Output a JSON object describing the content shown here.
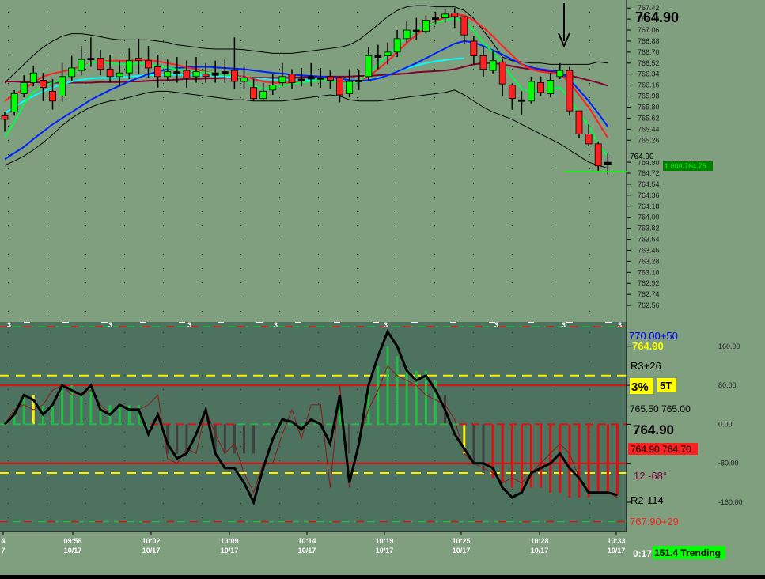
{
  "colors": {
    "price_bg": "#7f9f7f",
    "osc_bg": "#4d7260",
    "frame": "#000000",
    "up_candle": "#00ff00",
    "down_candle": "#ff2020",
    "doji": "#000000",
    "ma_fast": "#00ff44",
    "ma_red": "#ff2020",
    "ma_blue": "#0022ff",
    "ma_cyan": "#00ffff",
    "ma_maroon": "#800030",
    "band": "#000000",
    "hist_up": "#22bb44",
    "hist_down": "#dd1111",
    "hist_neutral": "#404040",
    "hist_yellow": "#ffee00"
  },
  "header": {
    "last_price": "764.90"
  },
  "price_marker": {
    "label": "1.000 764.75",
    "value": 764.75
  },
  "price_axis": {
    "ticks": [
      "767.42",
      "767.24",
      "767.06",
      "766.88",
      "766.70",
      "766.52",
      "766.34",
      "766.16",
      "765.98",
      "765.80",
      "765.62",
      "765.44",
      "765.26",
      "764.90",
      "764.72",
      "764.54",
      "764.36",
      "764.18",
      "764.00",
      "763.82",
      "763.64",
      "763.46",
      "763.28",
      "763.10",
      "762.92",
      "762.74",
      "762.56"
    ],
    "tick_values": [
      767.42,
      767.24,
      767.06,
      766.88,
      766.7,
      766.52,
      766.34,
      766.16,
      765.98,
      765.8,
      765.62,
      765.44,
      765.26,
      764.9,
      764.72,
      764.54,
      764.36,
      764.18,
      764.0,
      763.82,
      763.64,
      763.46,
      763.28,
      763.1,
      762.92,
      762.74,
      762.56
    ],
    "current_label": "764.90",
    "current_value": 764.9
  },
  "osc_axis": {
    "ticks": [
      "160.00",
      "80.00",
      "0.00",
      "-80.00",
      "-160.00"
    ],
    "tick_values": [
      160,
      80,
      0,
      -80,
      -160
    ],
    "top_marker": "3"
  },
  "osc_panel": {
    "label_770": "770.00+50",
    "label_yellow_price": "764.90",
    "label_r3": "R3+26",
    "label_pct": "3%",
    "label_5t": "5T",
    "label_765": "765.50 765.00",
    "label_price_big": "764.90",
    "label_red_box": "764.90 764.70",
    "label_angle": "12  -68°",
    "label_r2": "R2-114",
    "label_767": "767.90+29"
  },
  "time_axis": {
    "times": [
      "4",
      "09:58",
      "10:02",
      "10:09",
      "10:14",
      "10:19",
      "10:25",
      "10:28",
      "10:33"
    ],
    "dates": [
      "7",
      "10/17",
      "10/17",
      "10/17",
      "10/17",
      "10/17",
      "10/17",
      "10/17",
      "10/17"
    ]
  },
  "status_bar": {
    "timer": "0:17",
    "trend": "151.4 Trending"
  },
  "chart_data": {
    "type": "candlestick",
    "price_range": [
      762.38,
      767.5
    ],
    "candles": [
      [
        765.66,
        765.6,
        765.72,
        765.4
      ],
      [
        765.72,
        766.02,
        766.08,
        765.66
      ],
      [
        766.02,
        766.2,
        766.32,
        765.96
      ],
      [
        766.2,
        766.36,
        766.48,
        766.14
      ],
      [
        766.24,
        766.12,
        766.36,
        765.9
      ],
      [
        766.06,
        765.9,
        766.26,
        765.76
      ],
      [
        765.98,
        766.3,
        766.52,
        765.88
      ],
      [
        766.3,
        766.44,
        766.64,
        766.22
      ],
      [
        766.4,
        766.58,
        766.8,
        766.32
      ],
      [
        766.58,
        766.6,
        766.94,
        766.46
      ],
      [
        766.6,
        766.42,
        766.74,
        766.32
      ],
      [
        766.42,
        766.3,
        766.66,
        766.2
      ],
      [
        766.3,
        766.36,
        766.56,
        766.14
      ],
      [
        766.36,
        766.56,
        766.76,
        766.26
      ],
      [
        766.6,
        766.56,
        766.92,
        766.34
      ],
      [
        766.56,
        766.44,
        766.8,
        766.28
      ],
      [
        766.46,
        766.3,
        766.66,
        766.12
      ],
      [
        766.3,
        766.38,
        766.58,
        766.22
      ],
      [
        766.36,
        766.38,
        766.62,
        766.2
      ],
      [
        766.4,
        766.28,
        766.56,
        766.12
      ],
      [
        766.3,
        766.38,
        766.62,
        766.2
      ],
      [
        766.34,
        766.3,
        766.52,
        766.2
      ],
      [
        766.32,
        766.36,
        766.56,
        766.2
      ],
      [
        766.34,
        766.38,
        766.58,
        766.2
      ],
      [
        766.4,
        766.22,
        766.94,
        766.1
      ],
      [
        766.22,
        766.28,
        766.46,
        766.1
      ],
      [
        766.12,
        765.94,
        766.26,
        765.9
      ],
      [
        765.94,
        766.06,
        766.2,
        765.9
      ],
      [
        766.08,
        766.16,
        766.34,
        766.0
      ],
      [
        766.2,
        766.3,
        766.52,
        766.14
      ],
      [
        766.34,
        766.2,
        766.42,
        766.1
      ],
      [
        766.24,
        766.26,
        766.44,
        766.14
      ],
      [
        766.26,
        766.3,
        766.52,
        766.14
      ],
      [
        766.28,
        766.26,
        766.44,
        766.12
      ],
      [
        766.3,
        766.24,
        766.4,
        766.1
      ],
      [
        766.28,
        766.0,
        766.3,
        765.88
      ],
      [
        766.02,
        766.22,
        766.42,
        765.96
      ],
      [
        766.22,
        766.24,
        766.4,
        766.08
      ],
      [
        766.3,
        766.64,
        766.78,
        766.22
      ],
      [
        766.62,
        766.64,
        766.82,
        766.42
      ],
      [
        766.64,
        766.7,
        766.86,
        766.5
      ],
      [
        766.7,
        766.92,
        767.06,
        766.62
      ],
      [
        766.92,
        767.06,
        767.2,
        766.86
      ],
      [
        767.06,
        767.04,
        767.26,
        766.9
      ],
      [
        767.04,
        767.22,
        767.3,
        767.0
      ],
      [
        767.24,
        767.26,
        767.36,
        767.16
      ],
      [
        767.26,
        767.32,
        767.4,
        767.18
      ],
      [
        767.34,
        767.28,
        767.42,
        767.1
      ],
      [
        767.28,
        766.98,
        767.2,
        766.84
      ],
      [
        766.88,
        766.64,
        766.96,
        766.5
      ],
      [
        766.64,
        766.42,
        766.8,
        766.3
      ],
      [
        766.4,
        766.56,
        766.72,
        766.34
      ],
      [
        766.54,
        766.18,
        766.6,
        765.98
      ],
      [
        766.16,
        765.94,
        766.18,
        765.76
      ],
      [
        765.92,
        765.9,
        766.06,
        765.68
      ],
      [
        765.9,
        766.22,
        766.3,
        765.86
      ],
      [
        766.2,
        766.04,
        766.3,
        765.98
      ],
      [
        766.02,
        766.24,
        766.36,
        765.96
      ],
      [
        766.3,
        766.4,
        766.52,
        766.26
      ],
      [
        766.4,
        765.74,
        766.46,
        765.66
      ],
      [
        765.74,
        765.36,
        765.74,
        765.3
      ],
      [
        765.36,
        765.2,
        765.52,
        765.16
      ],
      [
        765.2,
        764.84,
        765.24,
        764.76
      ],
      [
        764.86,
        764.9,
        765.04,
        764.7
      ]
    ],
    "ma_fast": [
      765.3,
      765.55,
      765.85,
      766.05,
      766.15,
      766.2,
      766.25,
      766.35,
      766.45,
      766.52,
      766.55,
      766.53,
      766.5,
      766.5,
      766.52,
      766.5,
      766.47,
      766.44,
      766.42,
      766.4,
      766.38,
      766.37,
      766.35,
      766.33,
      766.32,
      766.25,
      766.15,
      766.1,
      766.12,
      766.15,
      766.18,
      766.2,
      766.22,
      766.24,
      766.24,
      766.2,
      766.18,
      766.22,
      766.35,
      766.5,
      766.65,
      766.8,
      766.95,
      767.05,
      767.12,
      767.18,
      767.22,
      767.25,
      767.2,
      767.05,
      766.85,
      766.7,
      766.5,
      766.3,
      766.1,
      766.05,
      766.08,
      766.1,
      766.12,
      765.95,
      765.7,
      765.5,
      765.2,
      765.0
    ],
    "ma_red": [
      765.9,
      766.0,
      766.1,
      766.2,
      766.3,
      766.35,
      766.38,
      766.42,
      766.47,
      766.52,
      766.55,
      766.56,
      766.56,
      766.56,
      766.57,
      766.57,
      766.55,
      766.52,
      766.49,
      766.45,
      766.42,
      766.38,
      766.35,
      766.33,
      766.32,
      766.3,
      766.26,
      766.22,
      766.2,
      766.2,
      766.2,
      766.2,
      766.22,
      766.24,
      766.24,
      766.22,
      766.21,
      766.22,
      766.3,
      766.42,
      766.55,
      766.7,
      766.85,
      766.98,
      767.1,
      767.2,
      767.27,
      767.32,
      767.3,
      767.22,
      767.1,
      766.96,
      766.8,
      766.65,
      766.5,
      766.42,
      766.38,
      766.36,
      766.35,
      766.2,
      766.0,
      765.8,
      765.55,
      765.3
    ],
    "ma_blue": [
      764.95,
      765.05,
      765.15,
      765.28,
      765.4,
      765.52,
      765.62,
      765.72,
      765.82,
      765.92,
      766.0,
      766.08,
      766.15,
      766.22,
      766.28,
      766.34,
      766.38,
      766.42,
      766.44,
      766.45,
      766.46,
      766.46,
      766.45,
      766.44,
      766.43,
      766.42,
      766.4,
      766.38,
      766.36,
      766.35,
      766.33,
      766.32,
      766.31,
      766.3,
      766.29,
      766.27,
      766.24,
      766.23,
      766.24,
      766.27,
      766.32,
      766.38,
      766.45,
      766.52,
      766.6,
      766.68,
      766.76,
      766.84,
      766.88,
      766.86,
      766.8,
      766.73,
      766.66,
      766.58,
      766.5,
      766.45,
      766.42,
      766.4,
      766.38,
      766.25,
      766.08,
      765.9,
      765.7,
      765.48
    ],
    "ma_cyan": [
      765.7,
      765.8,
      765.9,
      765.98,
      766.06,
      766.12,
      766.18,
      766.22,
      766.25,
      766.27,
      766.28,
      766.28,
      766.29,
      766.3,
      766.31,
      766.32,
      766.33,
      766.33,
      766.33,
      766.33,
      766.32,
      766.32,
      766.31,
      766.3,
      766.29,
      766.28,
      766.27,
      766.26,
      766.25,
      766.25,
      766.25,
      766.24,
      766.24,
      766.24,
      766.24,
      766.23,
      766.22,
      766.22,
      766.24,
      766.28,
      766.32,
      766.38,
      766.44,
      766.48,
      766.52,
      766.55,
      766.57,
      766.59,
      766.6
    ],
    "ma_maroon": [
      766.22,
      766.22,
      766.21,
      766.21,
      766.2,
      766.2,
      766.2,
      766.2,
      766.2,
      766.2,
      766.21,
      766.21,
      766.21,
      766.22,
      766.22,
      766.23,
      766.24,
      766.24,
      766.25,
      766.26,
      766.26,
      766.27,
      766.27,
      766.28,
      766.28,
      766.28,
      766.28,
      766.28,
      766.28,
      766.28,
      766.28,
      766.29,
      766.29,
      766.3,
      766.3,
      766.3,
      766.3,
      766.31,
      766.31,
      766.32,
      766.33,
      766.34,
      766.35,
      766.37,
      766.38,
      766.39,
      766.4,
      766.42,
      766.46,
      766.5,
      766.52,
      766.52,
      766.5,
      766.47,
      766.44,
      766.42,
      766.4,
      766.38,
      766.35,
      766.32,
      766.28,
      766.24,
      766.2,
      766.15
    ],
    "band_upper": [
      766.2,
      766.35,
      766.5,
      766.65,
      766.78,
      766.88,
      766.96,
      767.0,
      767.0,
      766.98,
      766.95,
      766.92,
      766.9,
      766.9,
      766.9,
      766.9,
      766.88,
      766.86,
      766.82,
      766.8,
      766.78,
      766.76,
      766.75,
      766.75,
      766.75,
      766.74,
      766.72,
      766.7,
      766.68,
      766.68,
      766.68,
      766.7,
      766.72,
      766.74,
      766.76,
      766.78,
      766.82,
      766.9,
      767.02,
      767.15,
      767.28,
      767.38,
      767.44,
      767.46,
      767.46,
      767.44,
      767.44,
      767.44,
      767.38,
      767.25,
      767.05,
      766.85,
      766.62,
      766.56,
      766.54,
      766.52,
      766.52,
      766.5,
      766.5,
      766.5,
      766.5,
      766.5,
      766.54,
      766.52
    ],
    "band_lower": [
      764.85,
      764.92,
      765.0,
      765.1,
      765.22,
      765.35,
      765.5,
      765.62,
      765.72,
      765.8,
      765.86,
      765.9,
      765.92,
      765.96,
      766.0,
      766.04,
      766.06,
      766.06,
      766.04,
      766.02,
      766.0,
      765.98,
      765.96,
      765.94,
      765.92,
      765.92,
      765.9,
      765.9,
      765.9,
      765.9,
      765.92,
      765.94,
      765.96,
      765.98,
      766.0,
      765.98,
      765.92,
      765.9,
      765.9,
      765.9,
      765.92,
      765.94,
      765.96,
      765.98,
      766.0,
      766.02,
      766.04,
      766.08,
      766.0,
      765.9,
      765.8,
      765.72,
      765.66,
      765.6,
      765.52,
      765.44,
      765.36,
      765.28,
      765.2,
      765.1,
      765.0,
      764.9,
      764.85,
      764.8
    ],
    "osc_range": [
      -220,
      210
    ],
    "osc_bold": [
      0,
      20,
      60,
      50,
      20,
      40,
      80,
      70,
      60,
      80,
      30,
      20,
      40,
      30,
      30,
      -20,
      20,
      -40,
      -70,
      -60,
      -20,
      30,
      -60,
      -90,
      -90,
      -120,
      -160,
      -90,
      -30,
      10,
      5,
      -10,
      10,
      0,
      -40,
      60,
      -120,
      -40,
      80,
      140,
      190,
      160,
      110,
      90,
      100,
      70,
      30,
      -20,
      -50,
      -80,
      -80,
      -90,
      -130,
      -150,
      -140,
      -100,
      -90,
      -80,
      -60,
      -90,
      -110,
      -140,
      -140,
      -140,
      -145
    ],
    "osc_thin": [
      0,
      30,
      40,
      30,
      40,
      70,
      80,
      60,
      60,
      70,
      40,
      20,
      40,
      30,
      30,
      40,
      60,
      -70,
      -80,
      -50,
      -60,
      30,
      -20,
      -60,
      -40,
      -100,
      -140,
      -80,
      -80,
      -20,
      30,
      -30,
      40,
      40,
      -130,
      80,
      -130,
      -30,
      30,
      70,
      120,
      100,
      90,
      80,
      60,
      50,
      40,
      10,
      -60,
      -80,
      -90,
      -100,
      -120,
      -110,
      -120,
      -100,
      -80,
      -60,
      -40,
      -60,
      -110,
      -140,
      -140,
      -140,
      -150
    ],
    "hist": [
      0,
      20,
      60,
      60,
      40,
      40,
      80,
      80,
      60,
      80,
      40,
      40,
      40,
      40,
      40,
      0,
      0,
      -60,
      -60,
      -60,
      0,
      0,
      -60,
      -60,
      -60,
      -60,
      -60,
      0,
      0,
      0,
      0,
      0,
      0,
      0,
      0,
      60,
      -60,
      0,
      80,
      120,
      160,
      140,
      110,
      110,
      110,
      90,
      60,
      0,
      -60,
      -80,
      -100,
      -110,
      -120,
      -130,
      -140,
      -130,
      -130,
      -140,
      -140,
      -150,
      -150,
      -150,
      -140,
      -140,
      -145
    ],
    "hist_yellow_index": [
      3,
      48
    ],
    "hist_neutral_index": [
      17,
      18,
      19,
      22,
      23,
      24,
      25,
      26,
      36,
      46,
      47,
      48,
      49,
      50
    ],
    "osc_levels": {
      "red_top": 80,
      "red_bottom": -80,
      "yellow_top": 100,
      "yellow_bottom": -100,
      "green_top": 200,
      "green_bottom": -200
    }
  }
}
